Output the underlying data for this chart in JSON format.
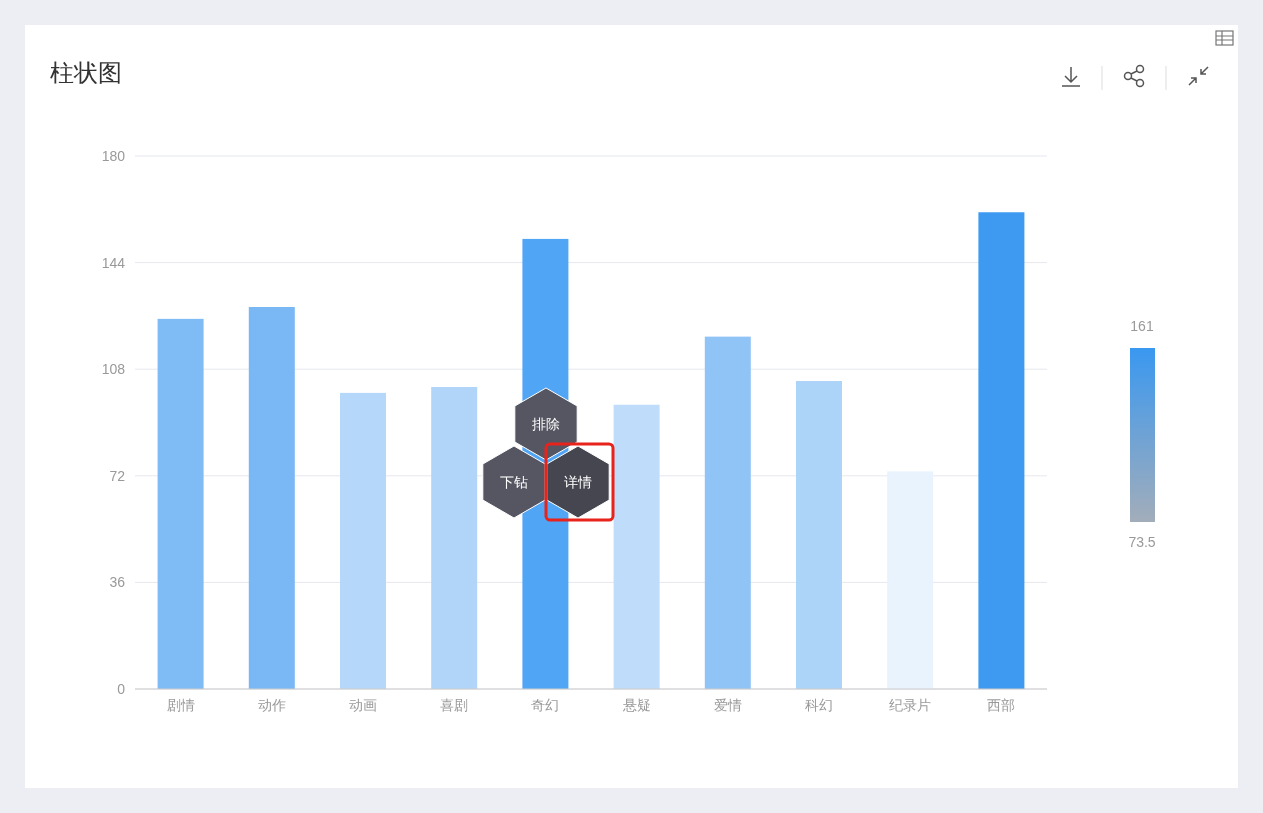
{
  "chart_data": {
    "type": "bar",
    "title": "柱状图",
    "categories": [
      "剧情",
      "动作",
      "动画",
      "喜剧",
      "奇幻",
      "悬疑",
      "爱情",
      "科幻",
      "纪录片",
      "西部"
    ],
    "values": [
      125,
      129,
      100,
      102,
      152,
      96,
      119,
      104,
      73.5,
      161
    ],
    "colors": [
      "#7fbbf5",
      "#79b8f5",
      "#b5d8fa",
      "#b0d5f9",
      "#51a5f5",
      "#bfddfa",
      "#90c4f6",
      "#acd3f8",
      "#e8f3fd",
      "#3d9af0"
    ],
    "ylim": [
      0,
      180
    ],
    "yticks": [
      0,
      36,
      72,
      108,
      144,
      180
    ],
    "grid": "y",
    "annotations": [
      "排除",
      "下钻",
      "详情",
      "161",
      "73.5"
    ]
  }
}
